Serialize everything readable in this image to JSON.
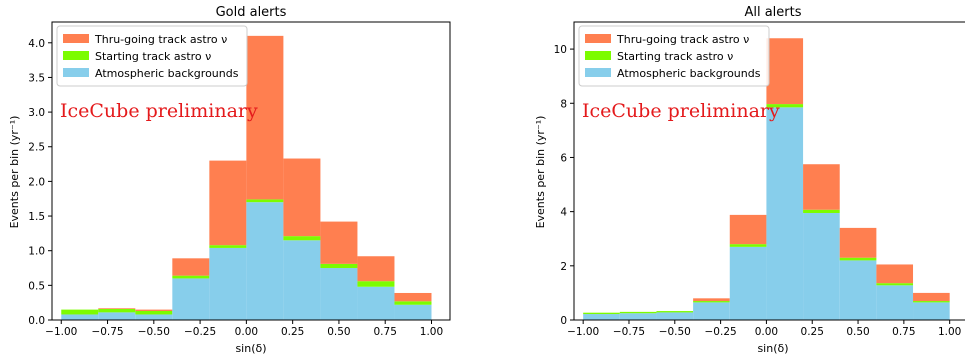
{
  "colors": {
    "thru": "#ff7f50",
    "starting": "#7cfc00",
    "atmo": "#87ceeb",
    "annotation": "#e41a1c"
  },
  "chart_data": [
    {
      "type": "bar",
      "stacked": true,
      "title": "Gold alerts",
      "xlabel": "sin(δ)",
      "ylabel": "Events per bin (yr⁻¹)",
      "annotation": "IceCube preliminary",
      "legend_position": "top-left",
      "bin_edges": [
        -1.0,
        -0.8,
        -0.6,
        -0.4,
        -0.2,
        0.0,
        0.2,
        0.4,
        0.6,
        0.8,
        1.0
      ],
      "xlim": [
        -1.05,
        1.1
      ],
      "ylim": [
        0,
        4.3
      ],
      "xticks": [
        "−1.00",
        "−0.75",
        "−0.50",
        "−0.25",
        "0.00",
        "0.25",
        "0.50",
        "0.75",
        "1.00"
      ],
      "yticks": [
        "0.0",
        "0.5",
        "1.0",
        "1.5",
        "2.0",
        "2.5",
        "3.0",
        "3.5",
        "4.0"
      ],
      "series": [
        {
          "name": "Atmospheric backgrounds",
          "color_key": "atmo",
          "values": [
            0.08,
            0.11,
            0.08,
            0.6,
            1.04,
            1.7,
            1.15,
            0.75,
            0.48,
            0.22
          ]
        },
        {
          "name": "Starting track astro ν",
          "color_key": "starting",
          "values": [
            0.07,
            0.05,
            0.05,
            0.04,
            0.04,
            0.04,
            0.06,
            0.06,
            0.08,
            0.05
          ]
        },
        {
          "name": "Thru-going track astro ν",
          "color_key": "thru",
          "values": [
            0.0,
            0.01,
            0.02,
            0.25,
            1.22,
            2.36,
            1.12,
            0.61,
            0.36,
            0.12
          ]
        }
      ]
    },
    {
      "type": "bar",
      "stacked": true,
      "title": "All alerts",
      "xlabel": "sin(δ)",
      "ylabel": "Events per bin (yr⁻¹)",
      "annotation": "IceCube preliminary",
      "legend_position": "top-left",
      "bin_edges": [
        -1.0,
        -0.8,
        -0.6,
        -0.4,
        -0.2,
        0.0,
        0.2,
        0.4,
        0.6,
        0.8,
        1.0
      ],
      "xlim": [
        -1.05,
        1.1
      ],
      "ylim": [
        0,
        11.0
      ],
      "xticks": [
        "−1.00",
        "−0.75",
        "−0.50",
        "−0.25",
        "0.00",
        "0.25",
        "0.50",
        "0.75",
        "1.00"
      ],
      "yticks": [
        "0",
        "2",
        "4",
        "6",
        "8",
        "10"
      ],
      "series": [
        {
          "name": "Atmospheric backgrounds",
          "color_key": "atmo",
          "values": [
            0.22,
            0.25,
            0.28,
            0.65,
            2.7,
            7.85,
            3.95,
            2.2,
            1.28,
            0.65
          ]
        },
        {
          "name": "Starting track astro ν",
          "color_key": "starting",
          "values": [
            0.05,
            0.05,
            0.05,
            0.05,
            0.1,
            0.12,
            0.12,
            0.1,
            0.08,
            0.05
          ]
        },
        {
          "name": "Thru-going track astro ν",
          "color_key": "thru",
          "values": [
            0.0,
            0.0,
            0.0,
            0.1,
            1.08,
            2.43,
            1.68,
            1.1,
            0.69,
            0.3
          ]
        }
      ]
    }
  ]
}
